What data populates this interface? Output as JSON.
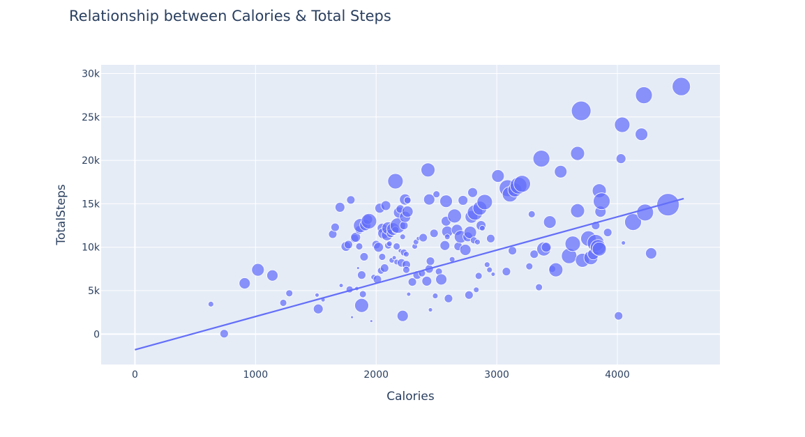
{
  "chart_data": {
    "type": "scatter",
    "title": "Relationship between Calories & Total Steps",
    "xlabel": "Calories",
    "ylabel": "TotalSteps",
    "xlim": [
      -280,
      4850
    ],
    "ylim": [
      -3500,
      31000
    ],
    "x_ticks": [
      0,
      1000,
      2000,
      3000,
      4000
    ],
    "x_tick_labels": [
      "0",
      "1000",
      "2000",
      "3000",
      "4000"
    ],
    "y_ticks": [
      0,
      5000,
      10000,
      15000,
      20000,
      25000,
      30000
    ],
    "y_tick_labels": [
      "0",
      "5k",
      "10k",
      "15k",
      "20k",
      "25k",
      "30k"
    ],
    "grid": true,
    "marker_color": "#636efa",
    "plot_bg": "#e5ecf6",
    "trendline": {
      "x": [
        0,
        4550
      ],
      "y": [
        -1800,
        15600
      ],
      "color": "#636efa"
    },
    "points": [
      [
        630,
        3450,
        4
      ],
      [
        740,
        50,
        6
      ],
      [
        910,
        5850,
        8
      ],
      [
        1020,
        7400,
        9
      ],
      [
        1140,
        6750,
        8
      ],
      [
        1230,
        3600,
        5
      ],
      [
        1280,
        4700,
        5
      ],
      [
        1510,
        4500,
        3
      ],
      [
        1520,
        2900,
        7
      ],
      [
        1560,
        3950,
        3
      ],
      [
        1640,
        11500,
        6
      ],
      [
        1660,
        12300,
        6
      ],
      [
        1700,
        14600,
        7
      ],
      [
        1710,
        5600,
        3
      ],
      [
        1750,
        10100,
        7
      ],
      [
        1770,
        10300,
        6
      ],
      [
        1780,
        5150,
        5
      ],
      [
        1790,
        15450,
        6
      ],
      [
        1800,
        1950,
        2
      ],
      [
        1820,
        11000,
        6
      ],
      [
        1830,
        11150,
        7
      ],
      [
        1840,
        5250,
        3
      ],
      [
        1850,
        7600,
        2
      ],
      [
        1860,
        10100,
        5
      ],
      [
        1860,
        12000,
        6
      ],
      [
        1870,
        12500,
        10
      ],
      [
        1880,
        3300,
        10
      ],
      [
        1880,
        6800,
        6
      ],
      [
        1890,
        4600,
        5
      ],
      [
        1900,
        8900,
        6
      ],
      [
        1910,
        12550,
        8
      ],
      [
        1930,
        13200,
        7
      ],
      [
        1940,
        13000,
        11
      ],
      [
        1960,
        1500,
        2
      ],
      [
        1980,
        6550,
        4
      ],
      [
        2000,
        10300,
        6
      ],
      [
        2010,
        6300,
        6
      ],
      [
        2020,
        10000,
        7
      ],
      [
        2030,
        14500,
        7
      ],
      [
        2040,
        7300,
        5
      ],
      [
        2050,
        8900,
        5
      ],
      [
        2050,
        12200,
        7
      ],
      [
        2060,
        11600,
        8
      ],
      [
        2070,
        7600,
        6
      ],
      [
        2080,
        14800,
        7
      ],
      [
        2090,
        11400,
        8
      ],
      [
        2100,
        10200,
        5
      ],
      [
        2100,
        12200,
        9
      ],
      [
        2110,
        10400,
        4
      ],
      [
        2120,
        11600,
        6
      ],
      [
        2130,
        8500,
        4
      ],
      [
        2140,
        12100,
        9
      ],
      [
        2150,
        8800,
        3
      ],
      [
        2160,
        17600,
        11
      ],
      [
        2160,
        12000,
        5
      ],
      [
        2170,
        10100,
        5
      ],
      [
        2170,
        8300,
        4
      ],
      [
        2180,
        12500,
        11
      ],
      [
        2190,
        14000,
        8
      ],
      [
        2200,
        14400,
        6
      ],
      [
        2200,
        9600,
        3
      ],
      [
        2210,
        8200,
        6
      ],
      [
        2220,
        11200,
        4
      ],
      [
        2220,
        2100,
        8
      ],
      [
        2230,
        9400,
        5
      ],
      [
        2230,
        12500,
        6
      ],
      [
        2240,
        13500,
        8
      ],
      [
        2240,
        15500,
        8
      ],
      [
        2250,
        8000,
        6
      ],
      [
        2250,
        9200,
        4
      ],
      [
        2250,
        7400,
        5
      ],
      [
        2260,
        15400,
        5
      ],
      [
        2260,
        14100,
        8
      ],
      [
        2270,
        4600,
        3
      ],
      [
        2300,
        6000,
        6
      ],
      [
        2320,
        10100,
        4
      ],
      [
        2330,
        10600,
        4
      ],
      [
        2340,
        6800,
        6
      ],
      [
        2350,
        11000,
        3
      ],
      [
        2380,
        7000,
        5
      ],
      [
        2390,
        11100,
        6
      ],
      [
        2420,
        6100,
        7
      ],
      [
        2430,
        18900,
        10
      ],
      [
        2440,
        15500,
        8
      ],
      [
        2440,
        7500,
        6
      ],
      [
        2450,
        8400,
        6
      ],
      [
        2450,
        2800,
        3
      ],
      [
        2480,
        11600,
        6
      ],
      [
        2490,
        4400,
        4
      ],
      [
        2500,
        16100,
        5
      ],
      [
        2520,
        7200,
        5
      ],
      [
        2540,
        6300,
        8
      ],
      [
        2570,
        10200,
        7
      ],
      [
        2580,
        13000,
        7
      ],
      [
        2580,
        15300,
        9
      ],
      [
        2590,
        11800,
        8
      ],
      [
        2590,
        11200,
        4
      ],
      [
        2600,
        4100,
        6
      ],
      [
        2630,
        8600,
        4
      ],
      [
        2650,
        13600,
        10
      ],
      [
        2670,
        12000,
        8
      ],
      [
        2680,
        10100,
        6
      ],
      [
        2700,
        11200,
        9
      ],
      [
        2720,
        15400,
        7
      ],
      [
        2740,
        9700,
        8
      ],
      [
        2760,
        11200,
        7
      ],
      [
        2770,
        4500,
        6
      ],
      [
        2780,
        11700,
        9
      ],
      [
        2790,
        13500,
        9
      ],
      [
        2800,
        16300,
        7
      ],
      [
        2810,
        10800,
        5
      ],
      [
        2820,
        14000,
        11
      ],
      [
        2830,
        5100,
        4
      ],
      [
        2840,
        10600,
        4
      ],
      [
        2850,
        6700,
        5
      ],
      [
        2860,
        14500,
        10
      ],
      [
        2870,
        12500,
        7
      ],
      [
        2880,
        12200,
        4
      ],
      [
        2900,
        15200,
        11
      ],
      [
        2920,
        8000,
        4
      ],
      [
        2940,
        7400,
        4
      ],
      [
        2950,
        11000,
        6
      ],
      [
        2970,
        6900,
        3
      ],
      [
        3010,
        18200,
        9
      ],
      [
        3080,
        7200,
        6
      ],
      [
        3090,
        16800,
        12
      ],
      [
        3110,
        16100,
        11
      ],
      [
        3130,
        9600,
        6
      ],
      [
        3150,
        16600,
        10
      ],
      [
        3180,
        17100,
        12
      ],
      [
        3210,
        17300,
        12
      ],
      [
        3270,
        7800,
        5
      ],
      [
        3290,
        13800,
        5
      ],
      [
        3310,
        9200,
        6
      ],
      [
        3350,
        5400,
        5
      ],
      [
        3370,
        20200,
        12
      ],
      [
        3390,
        9800,
        10
      ],
      [
        3410,
        10000,
        7
      ],
      [
        3440,
        12900,
        9
      ],
      [
        3460,
        7500,
        5
      ],
      [
        3490,
        7400,
        10
      ],
      [
        3530,
        18700,
        9
      ],
      [
        3600,
        9000,
        11
      ],
      [
        3630,
        10400,
        11
      ],
      [
        3670,
        14200,
        10
      ],
      [
        3670,
        20800,
        10
      ],
      [
        3700,
        25700,
        14
      ],
      [
        3710,
        8500,
        10
      ],
      [
        3760,
        11000,
        11
      ],
      [
        3780,
        8800,
        10
      ],
      [
        3800,
        9200,
        8
      ],
      [
        3820,
        12500,
        6
      ],
      [
        3820,
        10500,
        12
      ],
      [
        3840,
        10000,
        11
      ],
      [
        3850,
        9800,
        10
      ],
      [
        3850,
        16500,
        10
      ],
      [
        3860,
        14100,
        8
      ],
      [
        3870,
        15300,
        12
      ],
      [
        3920,
        11700,
        6
      ],
      [
        4010,
        2100,
        6
      ],
      [
        4030,
        20200,
        7
      ],
      [
        4040,
        24100,
        11
      ],
      [
        4050,
        10500,
        3
      ],
      [
        4130,
        12900,
        12
      ],
      [
        4200,
        23000,
        9
      ],
      [
        4220,
        27500,
        12
      ],
      [
        4230,
        14000,
        12
      ],
      [
        4280,
        9300,
        8
      ],
      [
        4420,
        14900,
        16
      ],
      [
        4530,
        28500,
        13
      ]
    ]
  }
}
